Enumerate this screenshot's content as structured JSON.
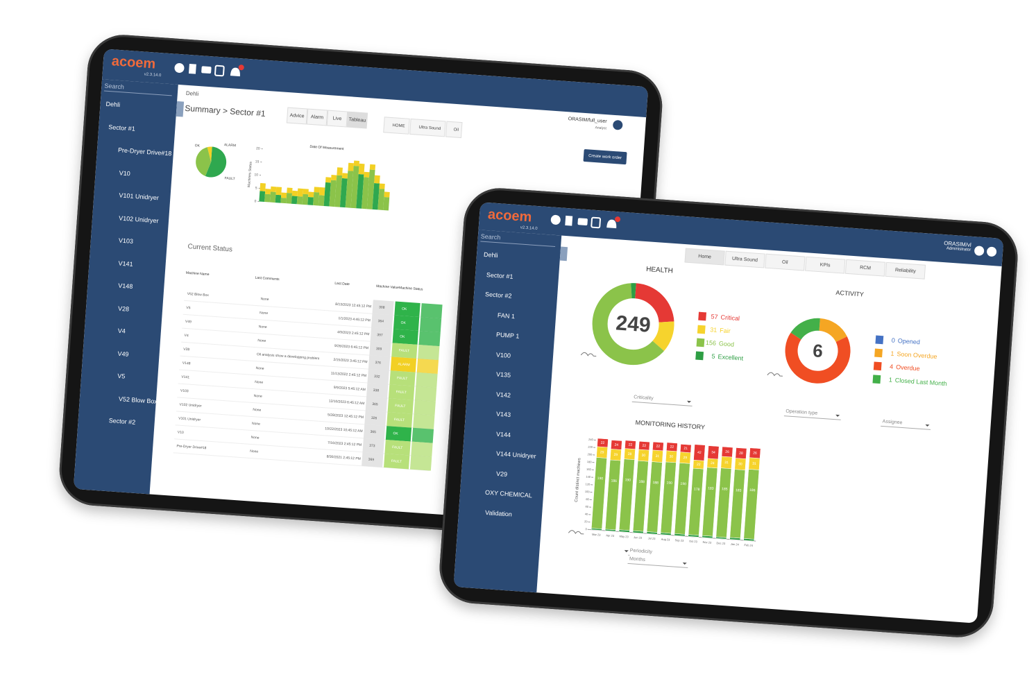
{
  "back_tablet": {
    "logo": "acoem",
    "version": "v2.3.14.0",
    "search": "Search",
    "breadcrumb": "Dehli",
    "tree": [
      "Dehli",
      "Sector #1",
      "Pre-Dryer Drive#18",
      "V10",
      "V101 Unidryer",
      "V102 Unidryer",
      "V103",
      "V141",
      "V148",
      "V28",
      "V4",
      "V49",
      "V5",
      "V52 Blow Box",
      "Sector #2"
    ],
    "title": "Summary > Sector #1",
    "tabs": [
      "Advice",
      "Alarm",
      "Live",
      "Tableau"
    ],
    "tabs2": [
      "HOME",
      "Ultra Sound",
      "Oil"
    ],
    "user": "ORASIM/full_user",
    "role": "Analyst",
    "button": "Create work order",
    "pie": {
      "type": "pie",
      "labels": [
        "OK",
        "FAULT",
        "ALARM"
      ],
      "values": [
        55,
        40,
        5
      ],
      "colors": [
        "#2fa84f",
        "#8bc34a",
        "#f2d024"
      ]
    },
    "bars": {
      "type": "bar",
      "title": "Date Of Measurement",
      "y_label": "Machines Status",
      "ylim": [
        0,
        20
      ],
      "yticks": [
        0,
        5,
        10,
        15,
        20
      ],
      "series": [
        {
          "name": "OK",
          "color": "#8bc34a",
          "values": [
            4,
            3,
            4,
            3,
            2,
            4,
            3,
            3,
            4,
            3,
            5,
            4,
            9,
            10,
            12,
            11,
            14,
            16,
            13,
            12,
            15,
            10,
            8,
            5
          ]
        },
        {
          "name": "FAULT",
          "color": "#f2d024",
          "values": [
            3,
            2,
            2,
            3,
            2,
            2,
            2,
            3,
            2,
            2,
            2,
            3,
            2,
            2,
            3,
            2,
            3,
            2,
            4,
            2,
            2,
            3,
            2,
            2
          ]
        }
      ]
    },
    "status_title": "Current Status",
    "table": {
      "columns": [
        "Machine Name",
        "Last Comments",
        "Last Date",
        "Machine Value",
        "Machine Status"
      ],
      "rows": [
        [
          "V52 Blow Box",
          "None",
          "8/13/2023 12:45:12 PM",
          "308",
          "OK"
        ],
        [
          "V5",
          "None",
          "1/1/2023 4:45:12 PM",
          "364",
          "OK"
        ],
        [
          "V49",
          "None",
          "4/9/2023 2:45:12 PM",
          "397",
          "OK"
        ],
        [
          "V4",
          "None",
          "9/26/2023 6:45:12 PM",
          "309",
          "FAULT"
        ],
        [
          "V28",
          "Oil analysis show a developping problem",
          "2/15/2023 3:45:12 PM",
          "376",
          "ALARM"
        ],
        [
          "V148",
          "None",
          "11/13/2022 2:45:12 PM",
          "332",
          "FAULT"
        ],
        [
          "V141",
          "None",
          "9/9/2023 5:45:12 AM",
          "338",
          "FAULT"
        ],
        [
          "V103",
          "None",
          "12/10/2023 6:45:12 AM",
          "365",
          "FAULT"
        ],
        [
          "V102 Unidryer",
          "None",
          "5/28/2023 12:45:12 PM",
          "326",
          "FAULT"
        ],
        [
          "V101 Unidryer",
          "None",
          "10/22/2023 10:45:12 AM",
          "365",
          "OK"
        ],
        [
          "V10",
          "None",
          "7/16/2023 2:45:12 PM",
          "373",
          "FAULT"
        ],
        [
          "Pre-Dryer Drive#18",
          "None",
          "8/30/2021 2:45:12 PM",
          "369",
          "FAULT"
        ]
      ]
    }
  },
  "front_tablet": {
    "logo": "acoem",
    "version": "v2.3.14.0",
    "search": "Search",
    "user": "ORASIM/vl",
    "role": "Administrator",
    "tree": [
      "Dehli",
      "Sector #1",
      "Sector #2",
      "FAN 1",
      "PUMP 1",
      "V100",
      "V135",
      "V142",
      "V143",
      "V144",
      "V144 Unidryer",
      "V29",
      "OXY CHEMICAL",
      "Validation"
    ],
    "tabs": [
      "Home",
      "Ultra Sound",
      "Oil",
      "KPIs",
      "RCM",
      "Reliability"
    ],
    "health": {
      "type": "pie",
      "title": "HEALTH",
      "total": 249,
      "labels": [
        "Critical",
        "Fair",
        "Good",
        "Excellent"
      ],
      "values": [
        57,
        31,
        156,
        5
      ],
      "colors": [
        "#e53935",
        "#f6d32d",
        "#8bc34a",
        "#2e9e44"
      ],
      "filter": "Criticality"
    },
    "activity": {
      "type": "pie",
      "title": "ACTIVITY",
      "total": 6,
      "labels": [
        "Opened",
        "Soon Overdue",
        "Overdue",
        "Closed Last Month"
      ],
      "values": [
        0,
        1,
        4,
        1
      ],
      "colors": [
        "#4472c4",
        "#f5a623",
        "#f04e23",
        "#43b049"
      ],
      "filter": "Operation type",
      "filter2": "Assignee"
    },
    "history": {
      "type": "bar",
      "title": "MONITORING HISTORY",
      "y_label": "Count distinct machines",
      "categories": [
        "Mar 23",
        "Apr 23",
        "May 23",
        "Jun 23",
        "Jul 23",
        "Aug 23",
        "Sep 23",
        "Oct 23",
        "Nov 23",
        "Dec 23",
        "Jan 24",
        "Feb 24"
      ],
      "ylim": [
        0,
        260
      ],
      "yticks": [
        0,
        20,
        40,
        60,
        80,
        100,
        120,
        140,
        160,
        180,
        200,
        220,
        240
      ],
      "series": [
        {
          "name": "Excellent",
          "color": "#2e9e44",
          "values": [
            4,
            4,
            5,
            5,
            5,
            5,
            5,
            5,
            5,
            4,
            5,
            5
          ]
        },
        {
          "name": "Good",
          "color": "#8bc34a",
          "values": [
            190,
            186,
            190,
            188,
            188,
            190,
            190,
            178,
            183,
            185,
            183,
            186
          ]
        },
        {
          "name": "Fair",
          "color": "#f6d32d",
          "values": [
            29,
            29,
            28,
            30,
            31,
            30,
            29,
            22,
            24,
            31,
            30,
            31
          ]
        },
        {
          "name": "Critical",
          "color": "#e53935",
          "values": [
            22,
            24,
            22,
            22,
            22,
            22,
            21,
            42,
            34,
            26,
            28,
            26
          ]
        }
      ],
      "periodicity_label": "Periodicity",
      "periodicity": "Months"
    }
  }
}
